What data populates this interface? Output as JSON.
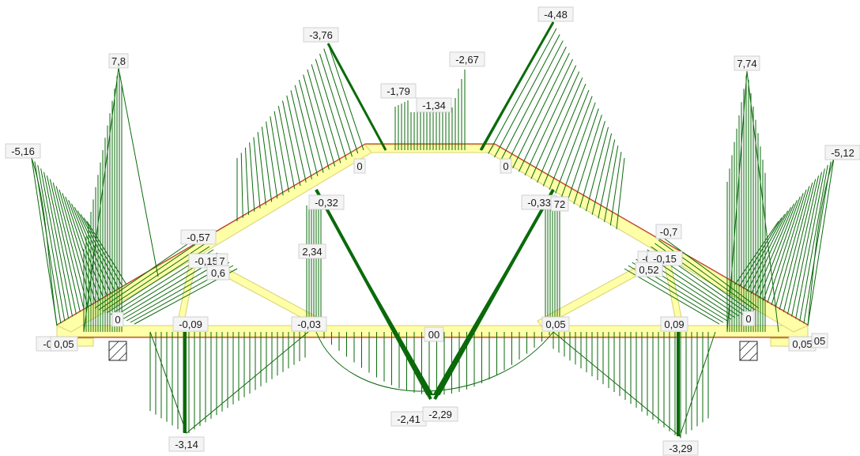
{
  "colors": {
    "diagram": "#0a6a0a",
    "member_fill": "#ffffa8",
    "member_edge": "#c01818",
    "label_bg": "#f4f4f4"
  },
  "labels": {
    "left_peak": "7,8",
    "right_peak": "7,74",
    "left_end_top": "-5,16",
    "right_end_top": "-5,12",
    "top_left_diag": "-3,76",
    "top_right_diag": "-4,48",
    "top_mid_left": "-1,79",
    "top_mid_center": "-1,34",
    "top_mid_right": "-2,67",
    "left_rafter_zero": "0",
    "right_rafter_zero": "0",
    "inner_left": "-0,32",
    "inner_right": "-0,33",
    "inner_right_b": "72",
    "strut_left_top": "-0,57",
    "strut_left_a": "-0,15",
    "strut_left_b": "7",
    "strut_left_c": "0,6",
    "strut_right_top": "-0,7",
    "strut_right_a": "-0",
    "strut_right_b": "-0,15",
    "strut_right_c": "0,52",
    "post_left": "2,34",
    "chord_left": "-0,09",
    "chord_mid_left": "-0,03",
    "chord_center": "00",
    "chord_mid_right": "0,05",
    "chord_right": "0,09",
    "left_support_zero": "0",
    "right_support_zero": "0",
    "left_end_a": "-0,",
    "left_end_b": "0,05",
    "right_end_a": "0,05",
    "right_end_b": "05",
    "bottom_left": "-3,14",
    "bottom_right": "-3,29",
    "bottom_center_left": "-2,41",
    "bottom_center_right": "-2,29"
  }
}
